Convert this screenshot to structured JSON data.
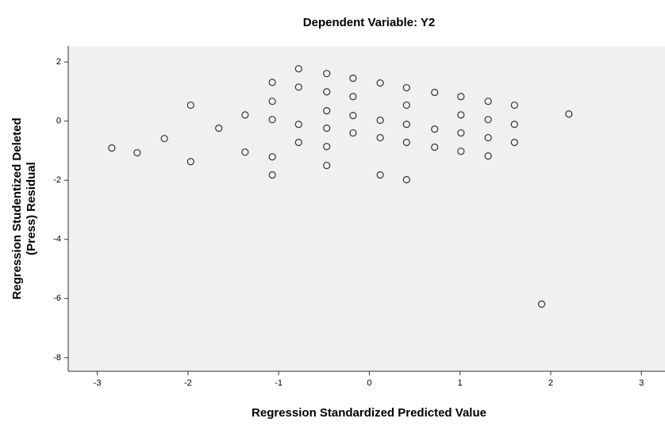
{
  "chart_data": {
    "type": "scatter",
    "title": "Dependent Variable: Y2",
    "xlabel": "Regression Standardized Predicted Value",
    "ylabel": [
      "Regression Studentized Deleted",
      "(Press) Residual"
    ],
    "x": [
      -2.84,
      -2.56,
      -2.26,
      -1.97,
      -1.97,
      -1.66,
      -1.37,
      -1.37,
      -1.07,
      -1.07,
      -1.07,
      -1.07,
      -1.07,
      -0.78,
      -0.78,
      -0.78,
      -0.78,
      -0.47,
      -0.47,
      -0.47,
      -0.47,
      -0.47,
      -0.47,
      -0.18,
      -0.18,
      -0.18,
      -0.18,
      0.12,
      0.12,
      0.12,
      0.12,
      0.41,
      0.41,
      0.41,
      0.41,
      0.41,
      0.72,
      0.72,
      0.72,
      1.01,
      1.01,
      1.01,
      1.01,
      1.31,
      1.31,
      1.31,
      1.31,
      1.6,
      1.6,
      1.6,
      2.2,
      1.9
    ],
    "y": [
      -0.91,
      -1.07,
      -0.59,
      0.54,
      -1.37,
      -0.24,
      0.21,
      -1.05,
      1.31,
      0.67,
      0.05,
      -1.21,
      -1.82,
      1.77,
      1.15,
      -0.11,
      -0.72,
      1.61,
      0.99,
      0.35,
      -0.24,
      -0.86,
      -1.5,
      1.45,
      0.83,
      0.19,
      -0.4,
      1.29,
      0.03,
      -0.56,
      -1.82,
      1.13,
      0.54,
      -0.11,
      -0.72,
      -1.98,
      0.97,
      -0.27,
      -0.88,
      0.83,
      0.21,
      -0.4,
      -1.02,
      0.67,
      0.05,
      -0.56,
      -1.18,
      0.54,
      -0.11,
      -0.72,
      0.24,
      -6.19
    ],
    "color": "#333333",
    "xlim": [
      -3.32,
      3.26
    ],
    "ylim": [
      -8.46,
      2.54
    ],
    "xticks": [
      -3,
      -2,
      -1,
      0,
      1,
      2,
      3
    ],
    "yticks": [
      -8,
      -6,
      -4,
      -2,
      0,
      2
    ]
  }
}
